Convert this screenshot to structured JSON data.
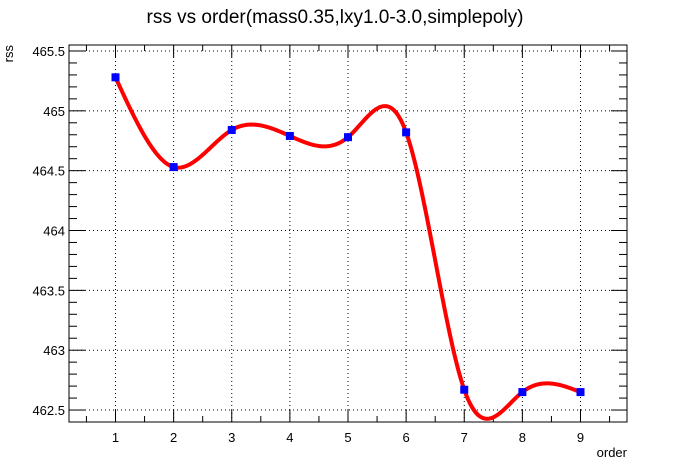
{
  "chart_data": {
    "type": "line",
    "title": "rss vs order(mass0.35,lxy1.0-3.0,simplepoly)",
    "xlabel": "order",
    "ylabel": "rss",
    "x": [
      1,
      2,
      3,
      4,
      5,
      6,
      7,
      8,
      9
    ],
    "series": [
      {
        "values": [
          465.28,
          464.53,
          464.84,
          464.79,
          464.78,
          464.82,
          462.67,
          462.65,
          462.65
        ],
        "line_color": "#ff0000",
        "marker_color": "#0000ff",
        "marker": "square",
        "smooth": true
      }
    ],
    "xlim": [
      0.2,
      9.8
    ],
    "ylim": [
      462.4,
      465.55
    ],
    "xticks": [
      "1",
      "2",
      "3",
      "4",
      "5",
      "6",
      "7",
      "8",
      "9"
    ],
    "yticks": [
      "462.5",
      "463",
      "463.5",
      "464",
      "464.5",
      "465",
      "465.5"
    ],
    "grid": true
  }
}
